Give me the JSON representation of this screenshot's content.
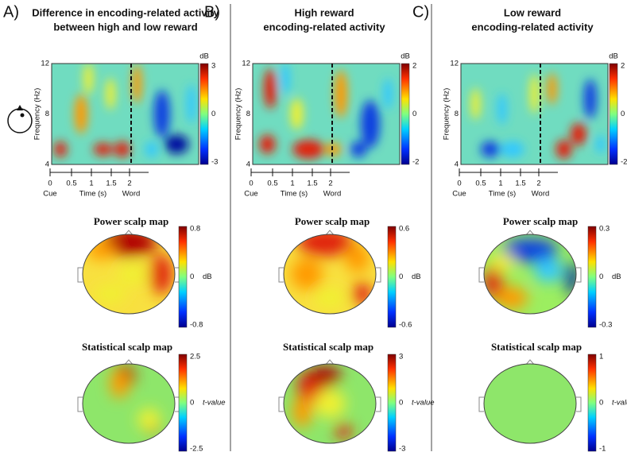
{
  "shared": {
    "tf_y_label": "Frequency (Hz)",
    "tf_y_ticks": [
      "12",
      "8",
      "4"
    ],
    "tf_x_ticks": [
      "0",
      "0.5",
      "1",
      "1.5",
      "2"
    ],
    "cue": "Cue",
    "time_label": "Time (s)",
    "word": "Word",
    "power_title": "Power scalp map",
    "stat_title": "Statistical scalp map",
    "power_unit": "dB",
    "stat_unit": "t-value"
  },
  "panels": [
    {
      "letter": "A)",
      "title": [
        "Difference in encoding-related activity",
        "between high and low reward"
      ],
      "tf_ticks": [
        3,
        0,
        -3
      ],
      "power_ticks": [
        0.8,
        0,
        -0.8
      ],
      "stat_ticks": [
        2.5,
        0,
        -2.5
      ]
    },
    {
      "letter": "B)",
      "title": [
        "High reward",
        "encoding-related activity"
      ],
      "tf_ticks": [
        2,
        0,
        -2
      ],
      "power_ticks": [
        0.6,
        0,
        -0.6
      ],
      "stat_ticks": [
        3,
        0,
        -3
      ]
    },
    {
      "letter": "C)",
      "title": [
        "Low reward",
        "encoding-related activity"
      ],
      "tf_ticks": [
        2,
        0,
        -2
      ],
      "power_ticks": [
        0.3,
        0,
        -0.3
      ],
      "stat_ticks": [
        1,
        0,
        -1
      ]
    }
  ]
}
